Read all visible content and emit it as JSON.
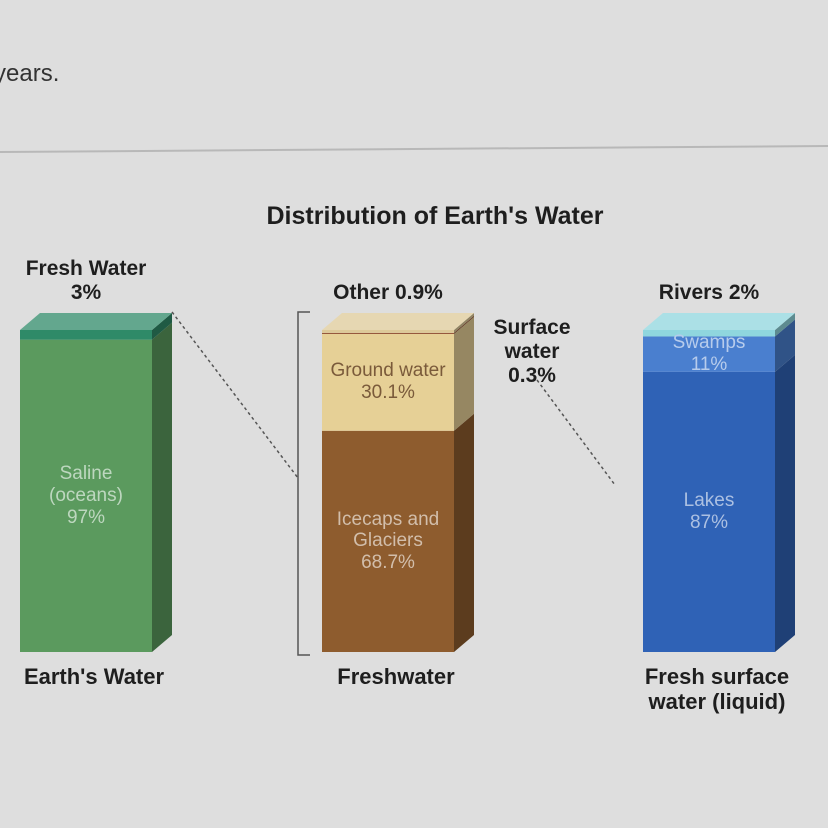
{
  "page_text": "years.",
  "chart_data": {
    "type": "stacked-column-3d",
    "title": "Distribution of Earth's Water",
    "categories": [
      "Earth's Water",
      "Freshwater",
      "Fresh surface water (liquid)"
    ],
    "stacks": [
      {
        "segments": [
          {
            "name": "Saline (oceans)",
            "value": 97,
            "value_label": "97%",
            "color": "#5b9a5e"
          },
          {
            "name": "Fresh Water",
            "value": 3,
            "value_label": "3%",
            "color": "#2f8a68"
          }
        ]
      },
      {
        "segments": [
          {
            "name": "Icecaps and Glaciers",
            "value": 68.7,
            "value_label": "68.7%",
            "color": "#8e5c2e"
          },
          {
            "name": "Ground water",
            "value": 30.1,
            "value_label": "30.1%",
            "color": "#e6d096"
          },
          {
            "name": "Surface water",
            "value": 0.3,
            "value_label": "0.3%",
            "color": "#8a4426"
          },
          {
            "name": "Other",
            "value": 0.9,
            "value_label": "0.9%",
            "color": "#ddc998"
          }
        ]
      },
      {
        "segments": [
          {
            "name": "Lakes",
            "value": 87,
            "value_label": "87%",
            "color": "#2f62b6"
          },
          {
            "name": "Swamps",
            "value": 11,
            "value_label": "11%",
            "color": "#4a7fcf"
          },
          {
            "name": "Rivers",
            "value": 2,
            "value_label": "2%",
            "color": "#8fd6de"
          }
        ]
      }
    ]
  }
}
